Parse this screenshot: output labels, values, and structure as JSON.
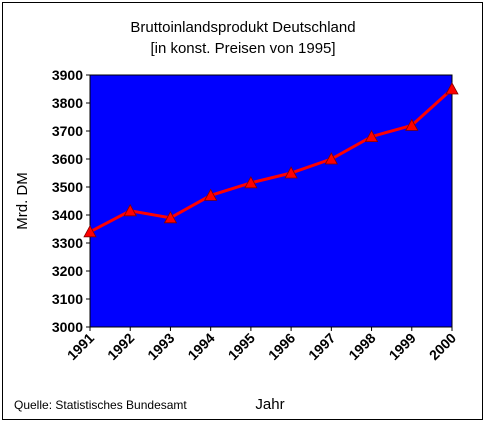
{
  "chart_data": {
    "type": "line",
    "title": "Bruttoinlandsprodukt Deutschland",
    "subtitle": "[in konst. Preisen von 1995]",
    "xlabel": "Jahr",
    "ylabel": "Mrd. DM",
    "categories": [
      "1991",
      "1992",
      "1993",
      "1994",
      "1995",
      "1996",
      "1997",
      "1998",
      "1999",
      "2000"
    ],
    "values": [
      3340,
      3415,
      3390,
      3470,
      3515,
      3550,
      3600,
      3680,
      3720,
      3850
    ],
    "ylim": [
      3000,
      3900
    ],
    "yticks": [
      3000,
      3100,
      3200,
      3300,
      3400,
      3500,
      3600,
      3700,
      3800,
      3900
    ],
    "grid": false,
    "legend": "none",
    "plot_background": "#0000FF",
    "line_color": "#FF0000",
    "marker": "triangle",
    "source": "Quelle: Statistisches Bundesamt"
  }
}
